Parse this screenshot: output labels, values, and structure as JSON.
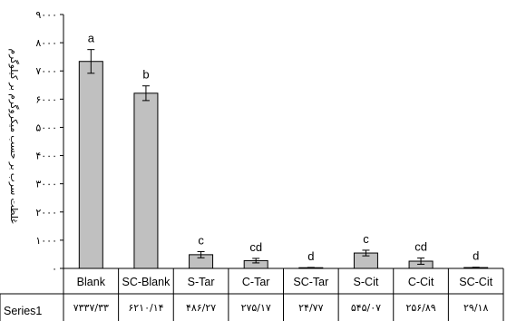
{
  "chart_data": {
    "type": "bar",
    "ylabel": "غلظت سرب بر حسب میکروگرم بر کیلوگرم",
    "ylim": [
      0,
      9000
    ],
    "yticks": [
      0,
      1000,
      2000,
      3000,
      4000,
      5000,
      6000,
      7000,
      8000,
      9000
    ],
    "ytick_labels": [
      "۰",
      "۱۰۰۰",
      "۲۰۰۰",
      "۳۰۰۰",
      "۴۰۰۰",
      "۵۰۰۰",
      "۶۰۰۰",
      "۷۰۰۰",
      "۸۰۰۰",
      "۹۰۰۰"
    ],
    "grid": false,
    "legend": "none",
    "categories": [
      "Blank",
      "SC-Blank",
      "S-Tar",
      "C-Tar",
      "SC-Tar",
      "S-Cit",
      "C-Cit",
      "SC-Cit"
    ],
    "series": [
      {
        "name": "Series1",
        "values": [
          7337.33,
          6210.14,
          486.27,
          275.17,
          24.77,
          545.07,
          256.89,
          29.18
        ],
        "value_labels": [
          "۷۳۳۷/۳۳",
          "۶۲۱۰/۱۴",
          "۴۸۶/۲۷",
          "۲۷۵/۱۷",
          "۲۴/۷۷",
          "۵۴۵/۰۷",
          "۲۵۶/۸۹",
          "۲۹/۱۸"
        ],
        "errors": [
          420,
          260,
          110,
          80,
          10,
          100,
          110,
          12
        ],
        "significance": [
          "a",
          "b",
          "c",
          "cd",
          "d",
          "c",
          "cd",
          "d"
        ]
      }
    ],
    "colors": {
      "bar_fill": "#c0c0c0",
      "bar_stroke": "#000000",
      "axis": "#000000"
    }
  }
}
